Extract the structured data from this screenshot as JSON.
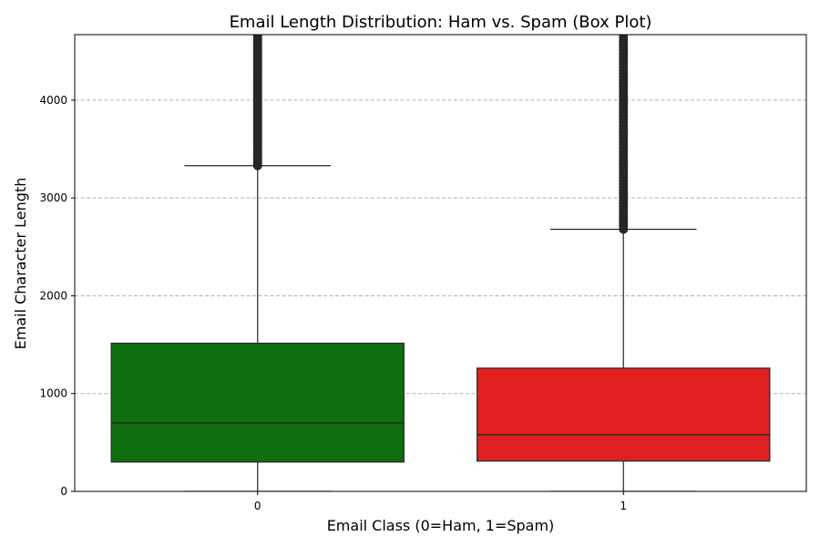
{
  "chart_data": {
    "type": "box",
    "title": "Email Length Distribution: Ham vs. Spam (Box Plot)",
    "xlabel": "Email Class (0=Ham, 1=Spam)",
    "ylabel": "Email Character Length",
    "ylim": [
      0,
      4670
    ],
    "yticks": [
      0,
      1000,
      2000,
      3000,
      4000
    ],
    "grid": "y-dashed",
    "categories": [
      "0",
      "1"
    ],
    "boxes": [
      {
        "category": "0",
        "color": "#0f6e10",
        "q1": 300,
        "median": 700,
        "q3": 1515,
        "whisker_low": 0,
        "whisker_high": 3330,
        "outliers_from": 3330,
        "outliers_to": 4670
      },
      {
        "category": "1",
        "color": "#e02020",
        "q1": 310,
        "median": 580,
        "q3": 1260,
        "whisker_low": 0,
        "whisker_high": 2680,
        "outliers_from": 2680,
        "outliers_to": 4670
      }
    ]
  }
}
